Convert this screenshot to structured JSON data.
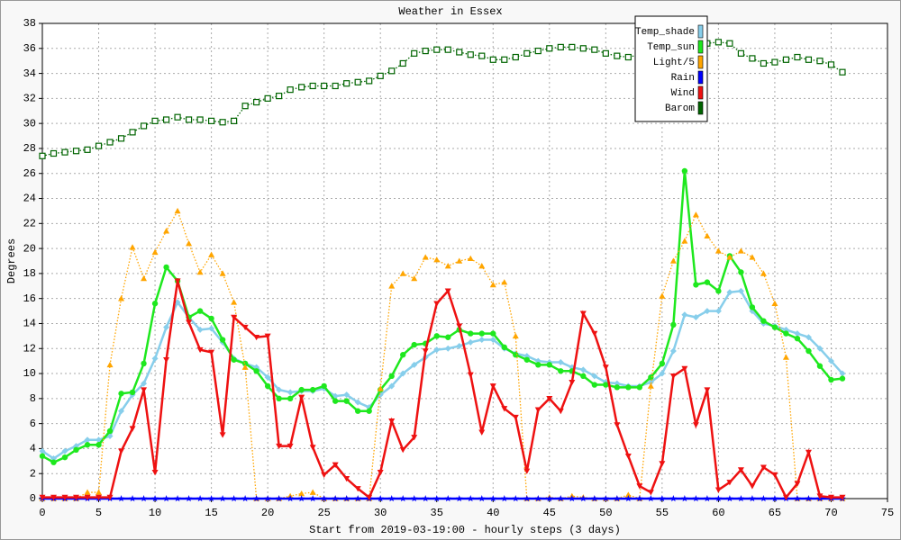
{
  "chart_data": {
    "type": "line",
    "title": "Weather in Essex",
    "x_label": "Start from 2019-03-19:00 - hourly steps (3 days)",
    "y_label": "Degrees",
    "x": [
      0,
      1,
      2,
      3,
      4,
      5,
      6,
      7,
      8,
      9,
      10,
      11,
      12,
      13,
      14,
      15,
      16,
      17,
      18,
      19,
      20,
      21,
      22,
      23,
      24,
      25,
      26,
      27,
      28,
      29,
      30,
      31,
      32,
      33,
      34,
      35,
      36,
      37,
      38,
      39,
      40,
      41,
      42,
      43,
      44,
      45,
      46,
      47,
      48,
      49,
      50,
      51,
      52,
      53,
      54,
      55,
      56,
      57,
      58,
      59,
      60,
      61,
      62,
      63,
      64,
      65,
      66,
      67,
      68,
      69,
      70,
      71
    ],
    "xlim": [
      0,
      75
    ],
    "xticks": [
      0,
      5,
      10,
      15,
      20,
      25,
      30,
      35,
      40,
      45,
      50,
      55,
      60,
      65,
      70,
      75
    ],
    "ylim": [
      0,
      38
    ],
    "yticks": [
      0,
      2,
      4,
      6,
      8,
      10,
      12,
      14,
      16,
      18,
      20,
      22,
      24,
      26,
      28,
      30,
      32,
      34,
      36,
      38
    ],
    "grid": true,
    "legend": "top-right",
    "series": [
      {
        "name": "Temp_shade",
        "color": "#87ceeb",
        "marker": "diamond",
        "line": "solid",
        "values": [
          3.8,
          3.2,
          3.8,
          4.2,
          4.7,
          4.7,
          5.0,
          7.0,
          8.3,
          9.2,
          11.2,
          13.7,
          15.7,
          14.5,
          13.5,
          13.6,
          12.5,
          11.2,
          10.8,
          10.5,
          9.7,
          8.7,
          8.5,
          8.6,
          8.6,
          8.8,
          8.2,
          8.3,
          7.7,
          7.3,
          8.3,
          9.0,
          10.0,
          10.7,
          11.3,
          11.9,
          12.0,
          12.2,
          12.5,
          12.7,
          12.7,
          12.0,
          11.6,
          11.4,
          11.0,
          10.9,
          10.9,
          10.5,
          10.3,
          9.8,
          9.3,
          9.2,
          9.0,
          9.0,
          9.3,
          10.0,
          11.8,
          14.7,
          14.5,
          15.0,
          15.0,
          16.5,
          16.6,
          15.0,
          14.0,
          13.8,
          13.5,
          13.2,
          12.9,
          12.0,
          11.0,
          10.0
        ]
      },
      {
        "name": "Temp_sun",
        "color": "#1ee81e",
        "marker": "circle",
        "line": "solid",
        "values": [
          3.4,
          2.9,
          3.3,
          3.9,
          4.3,
          4.3,
          5.4,
          8.4,
          8.5,
          10.8,
          15.6,
          18.5,
          17.4,
          14.5,
          15.0,
          14.4,
          12.7,
          11.1,
          10.8,
          10.2,
          9.0,
          8.0,
          8.0,
          8.7,
          8.7,
          9.0,
          7.8,
          7.8,
          7.0,
          7.0,
          8.7,
          9.8,
          11.5,
          12.3,
          12.4,
          13.0,
          12.9,
          13.5,
          13.2,
          13.2,
          13.2,
          12.1,
          11.5,
          11.1,
          10.7,
          10.7,
          10.2,
          10.2,
          9.8,
          9.1,
          9.1,
          8.9,
          8.9,
          8.9,
          9.7,
          10.8,
          13.9,
          26.2,
          17.1,
          17.3,
          16.6,
          19.4,
          18.1,
          15.3,
          14.2,
          13.7,
          13.2,
          12.8,
          11.8,
          10.6,
          9.5,
          9.6
        ]
      },
      {
        "name": "Light/5",
        "color": "#ffa500",
        "marker": "triangle-up",
        "line": "dotted",
        "values": [
          0,
          0,
          0,
          0,
          0.5,
          0.5,
          10.7,
          16.0,
          20.1,
          17.6,
          19.7,
          21.4,
          23.0,
          20.4,
          18.1,
          19.5,
          18.0,
          15.7,
          10.5,
          0,
          0,
          0,
          0.2,
          0.4,
          0.5,
          0,
          0,
          0,
          0,
          0,
          8.8,
          17.0,
          18.0,
          17.6,
          19.3,
          19.1,
          18.6,
          19.0,
          19.2,
          18.6,
          17.1,
          17.3,
          13.0,
          0,
          0,
          0.1,
          0,
          0.2,
          0.1,
          0,
          0,
          0,
          0.3,
          0,
          9.0,
          16.2,
          19.0,
          20.6,
          22.7,
          21.0,
          19.8,
          19.3,
          19.8,
          19.3,
          18.0,
          15.6,
          11.3,
          0,
          0,
          0,
          0,
          0
        ]
      },
      {
        "name": "Rain",
        "color": "#0000ff",
        "marker": "star",
        "line": "solid",
        "values": [
          0,
          0,
          0,
          0,
          0,
          0,
          0,
          0,
          0,
          0,
          0,
          0,
          0,
          0,
          0,
          0,
          0,
          0,
          0,
          0,
          0,
          0,
          0,
          0,
          0,
          0,
          0,
          0,
          0,
          0,
          0,
          0,
          0,
          0,
          0,
          0,
          0,
          0,
          0,
          0,
          0,
          0,
          0,
          0,
          0,
          0,
          0,
          0,
          0,
          0,
          0,
          0,
          0,
          0,
          0,
          0,
          0,
          0,
          0,
          0,
          0,
          0,
          0,
          0,
          0,
          0,
          0,
          0,
          0,
          0,
          0,
          0
        ]
      },
      {
        "name": "Wind",
        "color": "#ee1111",
        "marker": "triangle-down",
        "line": "solid",
        "values": [
          0.1,
          0.1,
          0.1,
          0.1,
          0.1,
          0.1,
          0.1,
          3.8,
          5.6,
          8.7,
          2.1,
          11.1,
          17.4,
          14.1,
          11.9,
          11.7,
          5.1,
          14.5,
          13.7,
          12.9,
          13.0,
          4.2,
          4.2,
          8.1,
          4.1,
          1.9,
          2.7,
          1.6,
          0.8,
          0.1,
          2.1,
          6.2,
          3.9,
          4.9,
          11.8,
          15.6,
          16.6,
          13.8,
          9.9,
          5.3,
          9.0,
          7.2,
          6.5,
          2.2,
          7.1,
          8.0,
          7.0,
          9.3,
          14.8,
          13.2,
          10.5,
          5.9,
          3.4,
          1.0,
          0.5,
          2.8,
          9.8,
          10.4,
          5.9,
          8.7,
          0.7,
          1.3,
          2.3,
          1.0,
          2.5,
          1.9,
          0.1,
          1.2,
          3.7,
          0.2,
          0.1,
          0.1
        ]
      },
      {
        "name": "Barom",
        "color": "#006400",
        "marker": "square",
        "line": "dotted",
        "values": [
          27.4,
          27.6,
          27.7,
          27.8,
          27.9,
          28.2,
          28.5,
          28.8,
          29.3,
          29.8,
          30.2,
          30.3,
          30.5,
          30.3,
          30.3,
          30.2,
          30.1,
          30.2,
          31.4,
          31.7,
          32.0,
          32.2,
          32.7,
          32.9,
          33.0,
          33.0,
          33.0,
          33.2,
          33.3,
          33.4,
          33.8,
          34.2,
          34.8,
          35.6,
          35.8,
          35.9,
          35.9,
          35.7,
          35.5,
          35.4,
          35.1,
          35.1,
          35.3,
          35.6,
          35.8,
          36.0,
          36.1,
          36.1,
          36.0,
          35.9,
          35.6,
          35.4,
          35.3,
          35.5,
          35.7,
          35.9,
          36.0,
          36.2,
          36.3,
          36.4,
          36.5,
          36.4,
          35.6,
          35.2,
          34.8,
          34.9,
          35.1,
          35.3,
          35.1,
          35.0,
          34.7,
          34.1
        ]
      }
    ]
  }
}
